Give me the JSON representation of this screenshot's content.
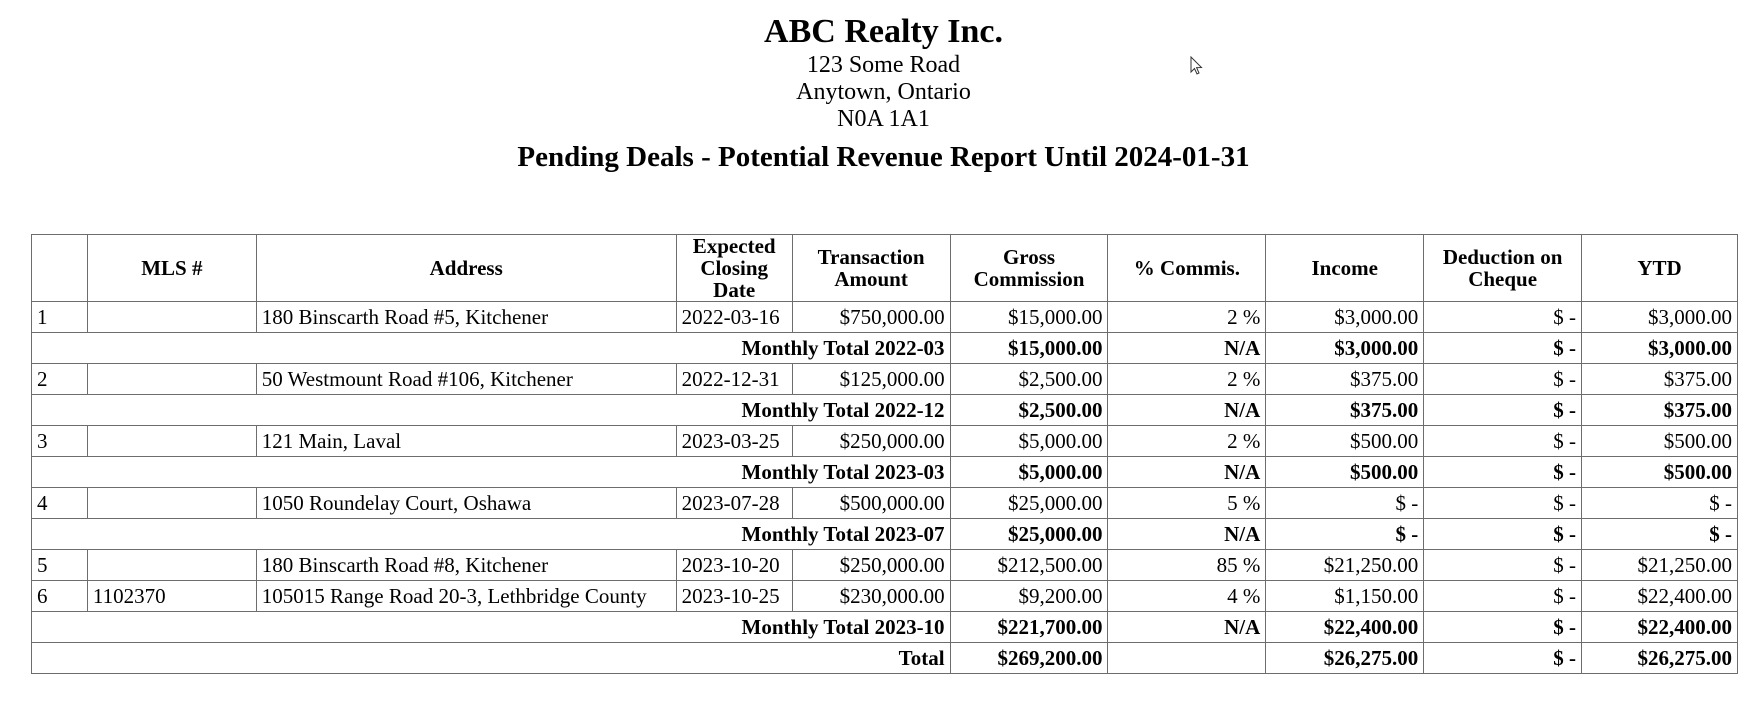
{
  "company": {
    "name": "ABC Realty Inc.",
    "address_line1": "123 Some Road",
    "address_line2": "Anytown, Ontario",
    "postal_code": "N0A 1A1"
  },
  "report_title": "Pending Deals - Potential Revenue Report Until 2024-01-31",
  "columns": [
    "",
    "MLS #",
    "Address",
    "Expected Closing Date",
    "Transaction Amount",
    "Gross Commission",
    "% Commis.",
    "Income",
    "Deduction on Cheque",
    "YTD"
  ],
  "rows": [
    {
      "type": "deal",
      "num": "1",
      "mls": "",
      "address": "180 Binscarth Road #5, Kitchener",
      "closing": "2022-03-16",
      "amount": "$750,000.00",
      "gross": "$15,000.00",
      "pct": "2 %",
      "income": "$3,000.00",
      "deduction": "$ -",
      "ytd": "$3,000.00"
    },
    {
      "type": "subtotal",
      "label": "Monthly Total 2022-03",
      "gross": "$15,000.00",
      "pct": "N/A",
      "income": "$3,000.00",
      "deduction": "$ -",
      "ytd": "$3,000.00"
    },
    {
      "type": "deal",
      "num": "2",
      "mls": "",
      "address": "50 Westmount Road #106, Kitchener",
      "closing": "2022-12-31",
      "amount": "$125,000.00",
      "gross": "$2,500.00",
      "pct": "2 %",
      "income": "$375.00",
      "deduction": "$ -",
      "ytd": "$375.00"
    },
    {
      "type": "subtotal",
      "label": "Monthly Total 2022-12",
      "gross": "$2,500.00",
      "pct": "N/A",
      "income": "$375.00",
      "deduction": "$ -",
      "ytd": "$375.00"
    },
    {
      "type": "deal",
      "num": "3",
      "mls": "",
      "address": "121 Main, Laval",
      "closing": "2023-03-25",
      "amount": "$250,000.00",
      "gross": "$5,000.00",
      "pct": "2 %",
      "income": "$500.00",
      "deduction": "$ -",
      "ytd": "$500.00"
    },
    {
      "type": "subtotal",
      "label": "Monthly Total 2023-03",
      "gross": "$5,000.00",
      "pct": "N/A",
      "income": "$500.00",
      "deduction": "$ -",
      "ytd": "$500.00"
    },
    {
      "type": "deal",
      "num": "4",
      "mls": "",
      "address": "1050 Roundelay Court, Oshawa",
      "closing": "2023-07-28",
      "amount": "$500,000.00",
      "gross": "$25,000.00",
      "pct": "5 %",
      "income": "$ -",
      "deduction": "$ -",
      "ytd": "$ -"
    },
    {
      "type": "subtotal",
      "label": "Monthly Total 2023-07",
      "gross": "$25,000.00",
      "pct": "N/A",
      "income": "$ -",
      "deduction": "$ -",
      "ytd": "$ -"
    },
    {
      "type": "deal",
      "num": "5",
      "mls": "",
      "address": "180 Binscarth Road #8, Kitchener",
      "closing": "2023-10-20",
      "amount": "$250,000.00",
      "gross": "$212,500.00",
      "pct": "85 %",
      "income": "$21,250.00",
      "deduction": "$ -",
      "ytd": "$21,250.00"
    },
    {
      "type": "deal",
      "num": "6",
      "mls": "1102370",
      "address": "105015 Range Road 20-3, Lethbridge County",
      "closing": "2023-10-25",
      "amount": "$230,000.00",
      "gross": "$9,200.00",
      "pct": "4 %",
      "income": "$1,150.00",
      "deduction": "$ -",
      "ytd": "$22,400.00"
    },
    {
      "type": "subtotal",
      "label": "Monthly Total 2023-10",
      "gross": "$221,700.00",
      "pct": "N/A",
      "income": "$22,400.00",
      "deduction": "$ -",
      "ytd": "$22,400.00"
    },
    {
      "type": "grand",
      "label": "Total",
      "gross": "$269,200.00",
      "pct": "",
      "income": "$26,275.00",
      "deduction": "$ -",
      "ytd": "$26,275.00"
    }
  ],
  "icons": {
    "cursor": "mouse-pointer-icon"
  }
}
